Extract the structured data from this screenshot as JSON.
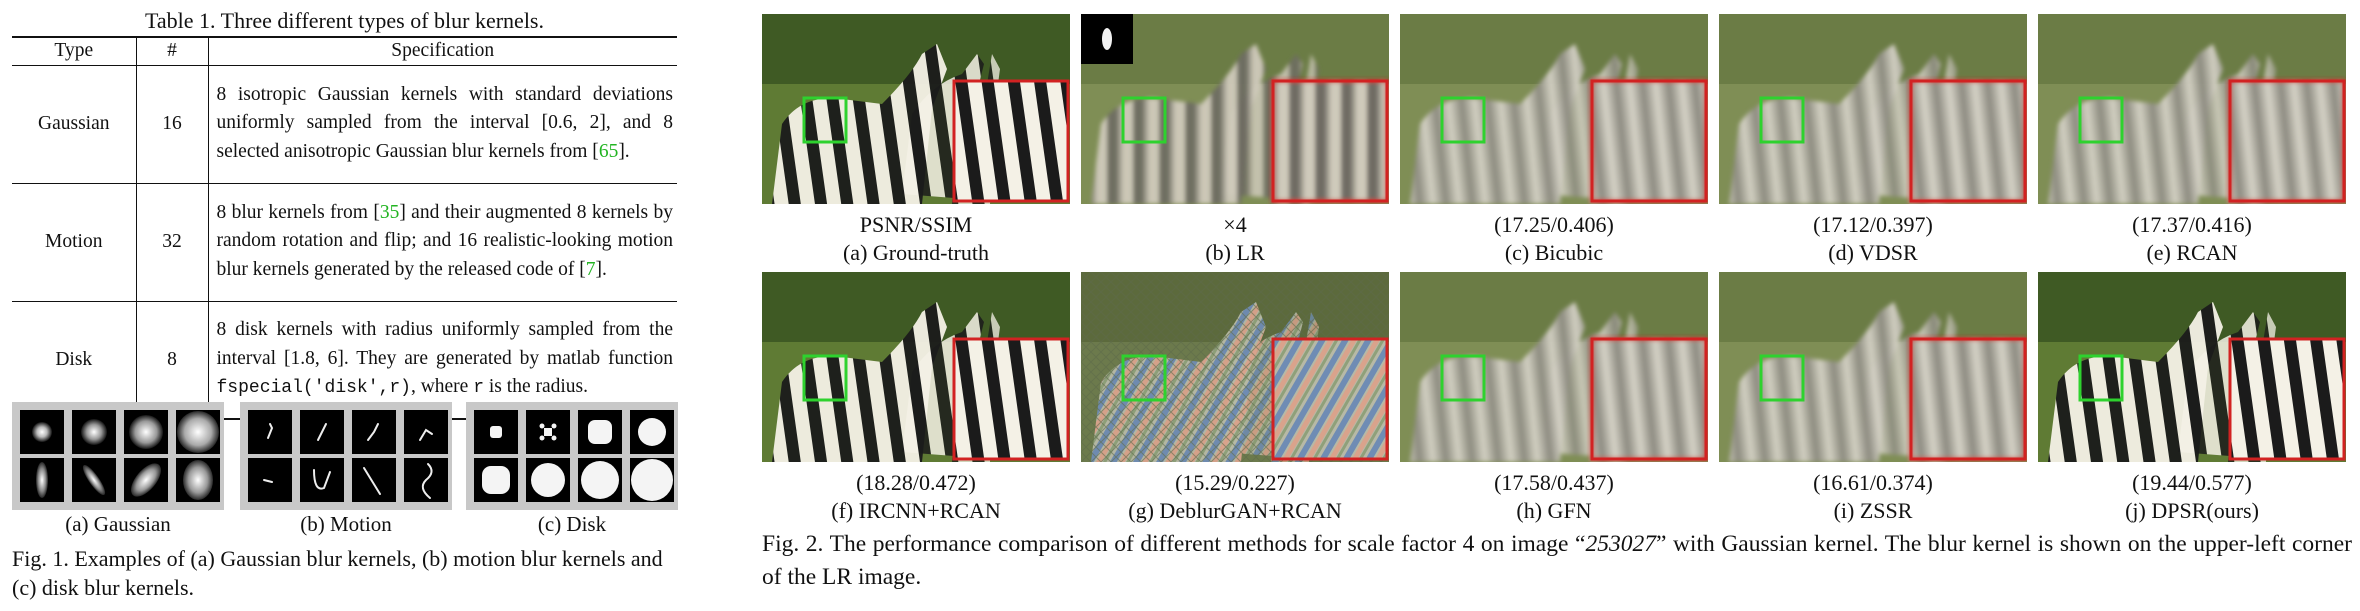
{
  "table": {
    "caption": "Table 1. Three different types of blur kernels.",
    "headers": [
      "Type",
      "#",
      "Specification"
    ],
    "rows": [
      {
        "type": "Gaussian",
        "count": "16",
        "spec_a": "8 isotropic Gaussian kernels with standard deviations uniformly sampled from the interval [0.6, 2], and 8 selected anisotropic Gaussian blur kernels from [",
        "cite": "65",
        "spec_b": "]."
      },
      {
        "type": "Motion",
        "count": "32",
        "spec_a": "8 blur kernels from [",
        "cite": "35",
        "spec_b": "] and their augmented 8 kernels by random rotation and flip; and 16 realistic-looking motion blur kernels generated by the released code of [",
        "cite2": "7",
        "spec_c": "]."
      },
      {
        "type": "Disk",
        "count": "8",
        "spec_a": "8 disk kernels with radius uniformly sampled from the interval [1.8, 6]. They are generated by matlab function ",
        "code": "fspecial('disk',r)",
        "spec_b": ", where ",
        "code2": "r",
        "spec_c": " is the radius."
      }
    ]
  },
  "fig1": {
    "panel_labels": [
      "(a) Gaussian",
      "(b) Motion",
      "(c) Disk"
    ],
    "caption": "Fig. 1. Examples of (a) Gaussian blur kernels, (b) motion blur kernels and (c) disk blur kernels."
  },
  "fig2": {
    "panels": [
      {
        "metric": "PSNR/SSIM",
        "label": "(a) Ground-truth"
      },
      {
        "metric": "×4",
        "label": "(b) LR"
      },
      {
        "metric": "(17.25/0.406)",
        "label": "(c) Bicubic"
      },
      {
        "metric": "(17.12/0.397)",
        "label": "(d) VDSR"
      },
      {
        "metric": "(17.37/0.416)",
        "label": "(e) RCAN"
      },
      {
        "metric": "(18.28/0.472)",
        "label": "(f) IRCNN+RCAN"
      },
      {
        "metric": "(15.29/0.227)",
        "label": "(g) DeblurGAN+RCAN"
      },
      {
        "metric": "(17.58/0.437)",
        "label": "(h) GFN"
      },
      {
        "metric": "(16.61/0.374)",
        "label": "(i) ZSSR"
      },
      {
        "metric": "(19.44/0.577)",
        "label": "(j) DPSR(ours)"
      }
    ],
    "caption_a": "Fig. 2. The performance comparison of different methods for scale factor 4 on image “",
    "caption_image": "253027",
    "caption_b": "” with Gaussian kernel. The blur kernel is shown on the upper-left corner of the LR image."
  },
  "colors": {
    "citation": "#22b422",
    "inset_border": "#d22222",
    "roi_box": "#2ed22e",
    "kernel_bg": "#c8c8c8"
  }
}
